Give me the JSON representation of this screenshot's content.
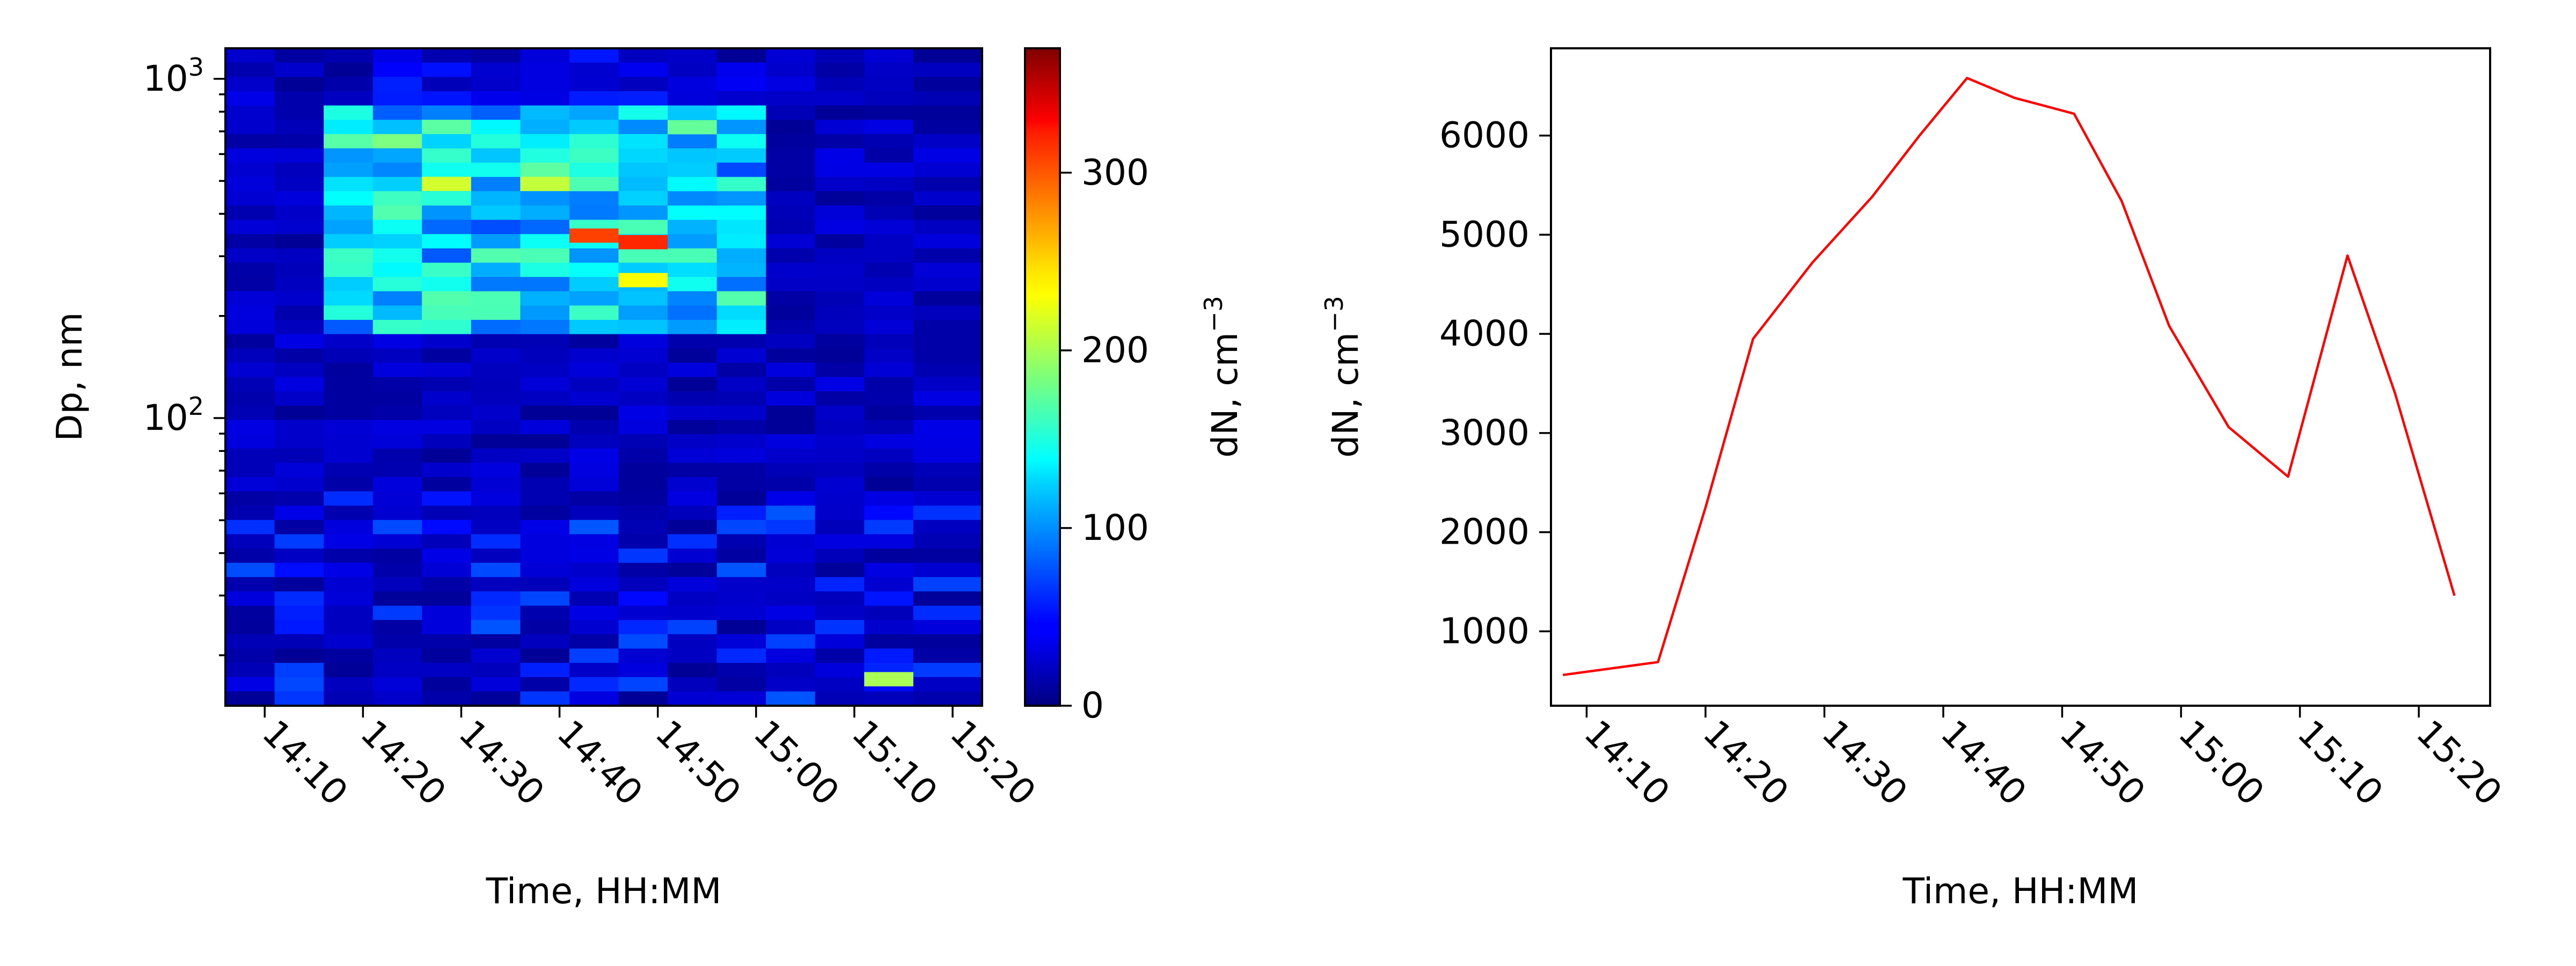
{
  "chart_data": [
    {
      "type": "heatmap",
      "xlabel": "Time, HH:MM",
      "ylabel": "Dp, nm",
      "y_scale": "log",
      "y_ticks": [
        {
          "value": 100,
          "base": "10",
          "exp": "2"
        },
        {
          "value": 1000,
          "base": "10",
          "exp": "3"
        }
      ],
      "x_time_range": [
        "14:06",
        "15:23"
      ],
      "x_ticks": [
        "14:10",
        "14:20",
        "14:30",
        "14:40",
        "14:50",
        "15:00",
        "15:10",
        "15:20"
      ],
      "time_bins": [
        "14:06",
        "14:11",
        "14:16",
        "14:21",
        "14:26",
        "14:31",
        "14:36",
        "14:41",
        "14:46",
        "14:51",
        "14:56",
        "15:01",
        "15:06",
        "15:11",
        "15:16"
      ],
      "colorbar": {
        "label": "dN, cm",
        "label_exp": "−3",
        "range": [
          0,
          370
        ],
        "ticks": [
          0,
          100,
          200,
          300
        ],
        "colormap": "jet"
      },
      "peak_cells": [
        {
          "time": "14:41",
          "dp_nm": 345,
          "value": 300
        },
        {
          "time": "14:46",
          "dp_nm": 330,
          "value": 310
        },
        {
          "time": "14:26",
          "dp_nm": 490,
          "value": 215
        },
        {
          "time": "14:36",
          "dp_nm": 490,
          "value": 210
        },
        {
          "time": "15:11",
          "dp_nm": 17,
          "value": 200
        },
        {
          "time": "14:46",
          "dp_nm": 255,
          "value": 230
        },
        {
          "time": "14:51",
          "dp_nm": 720,
          "value": 175
        }
      ]
    },
    {
      "type": "line",
      "xlabel": "Time, HH:MM",
      "ylabel": "dN, cm",
      "ylabel_exp": "−3",
      "x_ticks": [
        "14:10",
        "14:20",
        "14:30",
        "14:40",
        "14:50",
        "15:00",
        "15:10",
        "15:20"
      ],
      "x_time_range": [
        "14:07",
        "15:26"
      ],
      "y_ticks": [
        1000,
        2000,
        3000,
        4000,
        5000,
        6000
      ],
      "ylim": [
        250,
        6880
      ],
      "color": "#ff0000",
      "series": [
        {
          "x": [
            "14:08",
            "14:16",
            "14:20",
            "14:24",
            "14:29",
            "14:34",
            "14:38",
            "14:42",
            "14:46",
            "14:51",
            "14:55",
            "14:59",
            "15:04",
            "15:09",
            "15:14",
            "15:18",
            "15:23"
          ],
          "values": [
            560,
            690,
            2250,
            3950,
            4720,
            5380,
            6000,
            6580,
            6380,
            6220,
            5340,
            4080,
            3060,
            2560,
            4790,
            3400,
            1360
          ]
        }
      ]
    }
  ]
}
